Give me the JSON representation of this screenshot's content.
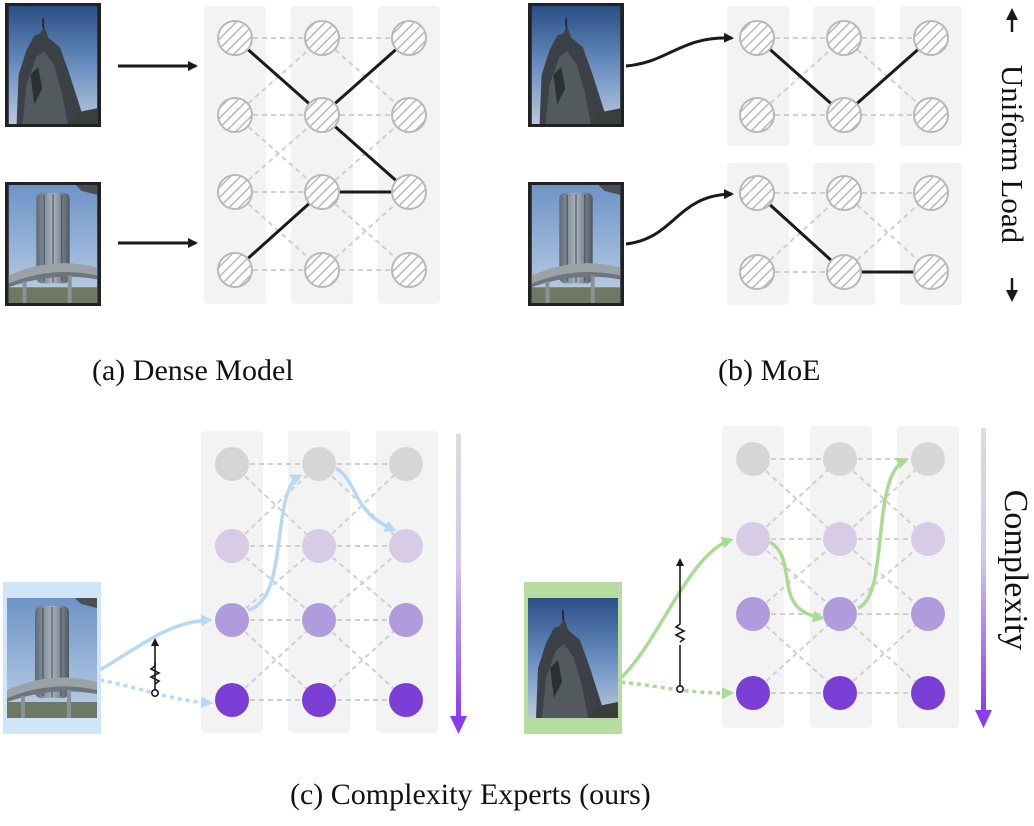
{
  "panels": {
    "a": {
      "caption": "(a) Dense Model"
    },
    "b": {
      "caption": "(b) MoE",
      "side_label": "Uniform Load"
    },
    "c": {
      "caption": "(c) Complexity Experts (ours)",
      "side_label": "Complexity"
    }
  },
  "colors": {
    "column_bg": "#f3f3f3",
    "node_hatch_stroke": "#b8b8b8",
    "dashed_edge": "#cfcfcf",
    "active_edge": "#1a1a1a",
    "complexity_levels": [
      "#d6d6d6",
      "#d7cbe6",
      "#b09bdc",
      "#7b3fd6"
    ],
    "blue_route": "#b7d9f5",
    "green_route": "#a9dc93",
    "arrow_gradient_top": "#dcdcdc",
    "arrow_gradient_bottom": "#8a3cf0"
  },
  "icons": {
    "image_rock": "rock-photo-icon",
    "image_tower": "tower-photo-icon",
    "resistor": "resistor-icon"
  }
}
